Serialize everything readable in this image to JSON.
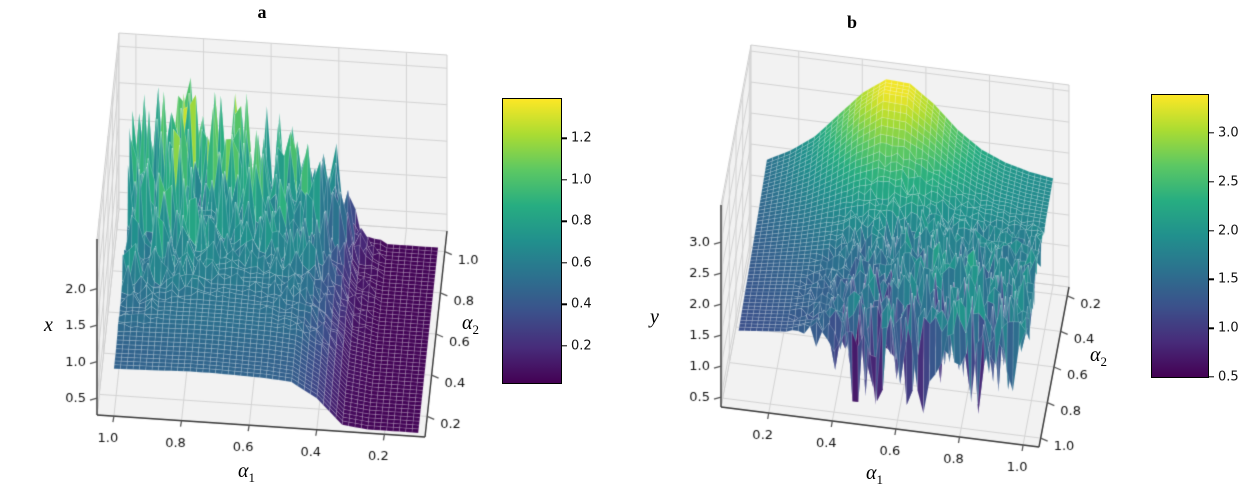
{
  "chart_data": [
    {
      "type": "surface_3d",
      "title": "a",
      "colormap": "viridis",
      "xlabel": "α",
      "xlabel_sub": "1",
      "ylabel": "α",
      "ylabel_sub": "2",
      "zlabel": "x",
      "alpha1_ticks": [
        1.0,
        0.8,
        0.6,
        0.4,
        0.2
      ],
      "alpha2_ticks": [
        0.2,
        0.4,
        0.6,
        0.8,
        1.0
      ],
      "z_ticks": [
        0.5,
        1.0,
        1.5,
        2.0
      ],
      "z_gridlines": [
        0.5,
        1.0,
        1.5,
        2.0,
        2.5
      ],
      "alpha1_range": [
        1.05,
        0.08
      ],
      "alpha2_range": [
        0.1,
        1.1
      ],
      "alpha1_values": [
        0.1,
        0.175,
        0.25,
        0.325,
        0.4,
        0.475,
        0.55,
        0.625,
        0.7,
        0.775,
        0.85,
        0.925,
        1.0
      ],
      "alpha2_values": [
        0.1,
        0.175,
        0.25,
        0.325,
        0.4,
        0.475,
        0.55,
        0.625,
        0.7,
        0.775,
        0.85,
        0.925,
        1.0
      ],
      "z_grid": [
        [
          0.32,
          0.32,
          0.32,
          0.36,
          0.7,
          0.9,
          0.93,
          0.94,
          0.95,
          0.95,
          0.94,
          0.93,
          0.92
        ],
        [
          0.32,
          0.32,
          0.32,
          0.36,
          0.7,
          0.9,
          0.93,
          0.94,
          0.95,
          0.95,
          0.94,
          0.93,
          0.92
        ],
        [
          0.32,
          0.32,
          0.32,
          0.37,
          0.72,
          0.93,
          0.96,
          0.97,
          0.98,
          0.98,
          0.97,
          0.96,
          0.95
        ],
        [
          0.32,
          0.32,
          0.32,
          0.38,
          0.75,
          0.97,
          1.0,
          1.01,
          1.02,
          1.02,
          1.01,
          1.0,
          0.99
        ],
        [
          0.32,
          0.32,
          0.32,
          0.38,
          0.76,
          0.98,
          1.01,
          1.02,
          1.03,
          1.03,
          1.02,
          1.01,
          1.0
        ],
        [
          0.32,
          0.32,
          0.32,
          0.39,
          0.78,
          1.0,
          1.03,
          1.04,
          1.05,
          1.05,
          1.04,
          1.03,
          1.02
        ],
        [
          0.32,
          0.32,
          0.32,
          0.4,
          0.8,
          1.04,
          1.08,
          1.09,
          1.1,
          1.1,
          1.09,
          1.08,
          1.06
        ],
        [
          0.32,
          0.32,
          0.32,
          0.41,
          0.82,
          1.07,
          1.11,
          1.12,
          1.13,
          1.13,
          1.12,
          1.11,
          1.09
        ],
        [
          0.32,
          0.32,
          0.32,
          0.41,
          0.83,
          1.1,
          1.14,
          1.15,
          1.16,
          1.16,
          1.15,
          1.14,
          1.12
        ],
        [
          0.32,
          0.32,
          0.32,
          0.42,
          0.85,
          1.13,
          1.17,
          1.18,
          1.19,
          1.19,
          1.18,
          1.17,
          1.15
        ],
        [
          0.32,
          0.32,
          0.32,
          0.42,
          0.86,
          1.15,
          1.19,
          1.21,
          1.22,
          1.22,
          1.21,
          1.19,
          1.17
        ],
        [
          0.32,
          0.32,
          0.32,
          0.43,
          0.87,
          1.17,
          1.21,
          1.23,
          1.24,
          1.24,
          1.23,
          1.21,
          1.19
        ],
        [
          0.32,
          0.32,
          0.32,
          0.43,
          0.88,
          1.18,
          1.23,
          1.25,
          1.26,
          1.26,
          1.25,
          1.23,
          1.2
        ]
      ],
      "chaos_amplitude": [
        [
          0,
          0,
          0,
          0,
          0,
          0,
          0,
          0,
          0,
          0,
          0,
          0,
          0
        ],
        [
          0,
          0,
          0,
          0,
          0,
          0,
          0,
          0,
          0,
          0,
          0,
          0,
          0
        ],
        [
          0,
          0,
          0,
          0,
          0,
          0,
          0,
          0,
          0,
          0,
          0,
          0,
          0
        ],
        [
          0,
          0,
          0,
          0,
          0.05,
          0.05,
          0,
          0,
          0,
          0,
          0,
          0.05,
          0.1
        ],
        [
          0,
          0,
          0,
          0,
          0.1,
          0.1,
          0.05,
          0,
          0,
          0,
          0.05,
          0.15,
          0.2
        ],
        [
          0,
          0,
          0,
          0,
          0.15,
          0.15,
          0.1,
          0.05,
          0.05,
          0.1,
          0.15,
          0.25,
          0.3
        ],
        [
          0,
          0,
          0,
          0.05,
          0.2,
          0.2,
          0.15,
          0.1,
          0.1,
          0.2,
          0.3,
          0.45,
          0.5
        ],
        [
          0,
          0,
          0,
          0.1,
          0.3,
          0.35,
          0.3,
          0.25,
          0.3,
          0.4,
          0.55,
          0.65,
          0.65
        ],
        [
          0,
          0,
          0,
          0.1,
          0.4,
          0.55,
          0.5,
          0.5,
          0.55,
          0.65,
          0.75,
          0.85,
          0.8
        ],
        [
          0,
          0,
          0,
          0.15,
          0.5,
          0.75,
          0.75,
          0.75,
          0.8,
          0.85,
          0.92,
          0.95,
          0.9
        ],
        [
          0,
          0,
          0,
          0.15,
          0.55,
          0.85,
          0.9,
          0.9,
          0.95,
          1,
          1,
          1,
          0.95
        ],
        [
          0,
          0,
          0,
          0.2,
          0.6,
          0.95,
          1,
          1,
          1,
          1,
          1,
          1,
          1
        ],
        [
          0,
          0,
          0,
          0.2,
          0.6,
          0.95,
          1,
          1,
          1,
          1,
          1,
          1,
          1
        ]
      ],
      "noise": {
        "up": 1.4,
        "up_pow": 3.5,
        "down": 0.45,
        "down_pow": 2
      },
      "clamp": [
        0.31,
        2.42
      ],
      "color_norm": [
        0.3,
        2.25
      ],
      "colorbar": {
        "vmin": 0.02,
        "vmax": 1.39,
        "ticks": [
          0.2,
          0.4,
          0.6,
          0.8,
          1.0,
          1.2
        ]
      }
    },
    {
      "type": "surface_3d",
      "title": "b",
      "colormap": "viridis",
      "xlabel": "α",
      "xlabel_sub": "1",
      "ylabel": "α",
      "ylabel_sub": "2",
      "zlabel": "y",
      "alpha1_ticks": [
        0.2,
        0.4,
        0.6,
        0.8,
        1.0
      ],
      "alpha2_ticks": [
        0.2,
        0.4,
        0.6,
        0.8,
        1.0
      ],
      "z_ticks": [
        0.5,
        1.0,
        1.5,
        2.0,
        2.5,
        3.0
      ],
      "z_gridlines": [
        0.5,
        1.0,
        1.5,
        2.0,
        2.5,
        3.0,
        3.5
      ],
      "alpha1_range": [
        0.05,
        1.05
      ],
      "alpha2_range": [
        1.05,
        0.15
      ],
      "alpha1_values": [
        0.1,
        0.175,
        0.25,
        0.325,
        0.4,
        0.475,
        0.55,
        0.625,
        0.7,
        0.775,
        0.85,
        0.925,
        1.0
      ],
      "alpha2_values": [
        0.15,
        0.22,
        0.29,
        0.36,
        0.43,
        0.5,
        0.57,
        0.64,
        0.71,
        0.78,
        0.85,
        0.93,
        1.0
      ],
      "z_grid": [
        [
          1.78,
          1.98,
          2.25,
          2.65,
          3.05,
          3.32,
          3.3,
          3.02,
          2.65,
          2.38,
          2.22,
          2.12,
          2.06
        ],
        [
          1.75,
          1.93,
          2.18,
          2.55,
          2.98,
          3.3,
          3.28,
          2.97,
          2.6,
          2.34,
          2.18,
          2.09,
          2.04
        ],
        [
          1.72,
          1.88,
          2.08,
          2.38,
          2.72,
          2.98,
          2.95,
          2.72,
          2.45,
          2.25,
          2.13,
          2.06,
          2.02
        ],
        [
          1.69,
          1.82,
          1.98,
          2.2,
          2.45,
          2.62,
          2.6,
          2.45,
          2.3,
          2.16,
          2.08,
          2.03,
          2.01
        ],
        [
          1.66,
          1.77,
          1.89,
          2.05,
          2.22,
          2.34,
          2.33,
          2.25,
          2.15,
          2.08,
          2.04,
          2.01,
          2.0
        ],
        [
          1.63,
          1.72,
          1.81,
          1.93,
          2.05,
          2.14,
          2.14,
          2.1,
          2.06,
          2.03,
          2.01,
          2.0,
          2.0
        ],
        [
          1.6,
          1.67,
          1.75,
          1.84,
          1.93,
          2.0,
          2.02,
          2.02,
          2.01,
          2.0,
          2.0,
          2.0,
          2.0
        ],
        [
          1.58,
          1.64,
          1.7,
          1.77,
          1.85,
          1.92,
          1.96,
          1.98,
          2.0,
          2.0,
          2.0,
          2.0,
          2.0
        ],
        [
          1.55,
          1.61,
          1.66,
          1.72,
          1.79,
          1.86,
          1.92,
          1.96,
          1.99,
          2.0,
          2.0,
          2.0,
          2.0
        ],
        [
          1.53,
          1.58,
          1.63,
          1.68,
          1.74,
          1.81,
          1.88,
          1.93,
          1.97,
          2.0,
          2.0,
          2.0,
          2.0
        ],
        [
          1.51,
          1.55,
          1.6,
          1.65,
          1.71,
          1.77,
          1.84,
          1.9,
          1.95,
          1.99,
          2.0,
          2.0,
          2.0
        ],
        [
          1.48,
          1.52,
          1.56,
          1.61,
          1.67,
          1.73,
          1.8,
          1.87,
          1.93,
          1.98,
          2.0,
          2.0,
          2.0
        ],
        [
          1.46,
          1.5,
          1.54,
          1.58,
          1.64,
          1.7,
          1.77,
          1.84,
          1.91,
          1.97,
          2.0,
          2.0,
          2.0
        ]
      ],
      "chaos_amplitude": [
        [
          0,
          0,
          0,
          0,
          0,
          0,
          0,
          0,
          0,
          0,
          0,
          0,
          0
        ],
        [
          0,
          0,
          0,
          0,
          0,
          0,
          0,
          0,
          0,
          0,
          0,
          0,
          0
        ],
        [
          0,
          0,
          0,
          0,
          0,
          0,
          0,
          0,
          0,
          0,
          0,
          0,
          0
        ],
        [
          0,
          0,
          0,
          0,
          0,
          0.05,
          0.1,
          0.1,
          0.05,
          0.05,
          0.05,
          0.05,
          0
        ],
        [
          0,
          0,
          0,
          0,
          0.05,
          0.15,
          0.2,
          0.2,
          0.15,
          0.15,
          0.15,
          0.1,
          0.1
        ],
        [
          0,
          0,
          0,
          0,
          0.1,
          0.35,
          0.45,
          0.45,
          0.4,
          0.35,
          0.35,
          0.3,
          0.25
        ],
        [
          0,
          0,
          0,
          0,
          0.2,
          0.55,
          0.65,
          0.65,
          0.65,
          0.6,
          0.55,
          0.5,
          0.45
        ],
        [
          0,
          0,
          0,
          0.05,
          0.3,
          0.7,
          0.8,
          0.8,
          0.8,
          0.75,
          0.7,
          0.65,
          0.6
        ],
        [
          0,
          0,
          0,
          0.1,
          0.4,
          0.8,
          0.9,
          0.95,
          0.95,
          0.9,
          0.85,
          0.8,
          0.7
        ],
        [
          0,
          0,
          0,
          0.15,
          0.5,
          0.9,
          1,
          1,
          1,
          1,
          0.95,
          0.9,
          0.8
        ],
        [
          0,
          0,
          0,
          0.15,
          0.5,
          0.95,
          1,
          1,
          1,
          1,
          1,
          0.95,
          0.85
        ],
        [
          0,
          0,
          0,
          0.2,
          0.55,
          1,
          1,
          1,
          1,
          1,
          1,
          1,
          0.9
        ],
        [
          0,
          0,
          0,
          0.2,
          0.55,
          1,
          1,
          1,
          1,
          1,
          1,
          1,
          0.9
        ]
      ],
      "noise": {
        "up": 0.55,
        "up_pow": 2,
        "down": 1.6,
        "down_pow": 3
      },
      "clamp": [
        0.5,
        3.42
      ],
      "color_norm": [
        0.85,
        3.35
      ],
      "colorbar": {
        "vmin": 0.5,
        "vmax": 3.39,
        "ticks": [
          0.5,
          1.0,
          1.5,
          2.0,
          2.5,
          3.0
        ]
      }
    }
  ]
}
